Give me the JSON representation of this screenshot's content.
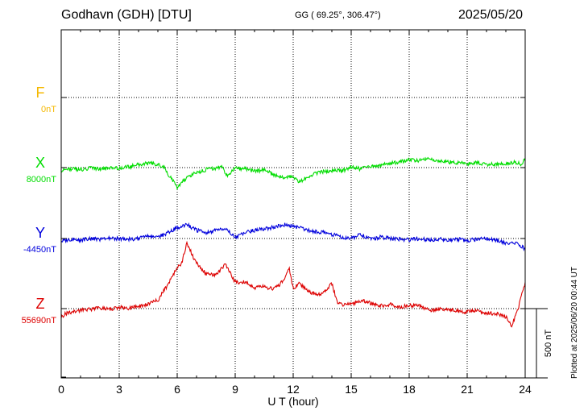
{
  "header": {
    "station": "Godhavn (GDH)  [DTU]",
    "coords": "GG ( 69.25°, 306.47°)",
    "date": "2025/05/20"
  },
  "footer": {
    "plotted": "Plotted at 2025/06/20 00:44 UT"
  },
  "chart_data": {
    "type": "line",
    "title": "Godhavn (GDH)  [DTU]",
    "xlabel": "U T (hour)",
    "xlim": [
      0,
      24
    ],
    "xticks": [
      "0",
      "3",
      "6",
      "9",
      "12",
      "15",
      "18",
      "21",
      "24"
    ],
    "grid": true,
    "scale_bar": {
      "label": "500 nT",
      "value_nT": 500
    },
    "colors": {
      "F": "#f5b800",
      "X": "#00dd00",
      "Y": "#0000dd",
      "Z": "#dd0000"
    },
    "series": [
      {
        "name": "F",
        "base_label": "0nT",
        "x": [],
        "y": []
      },
      {
        "name": "X",
        "base_label": "8000nT",
        "x": [
          0,
          0.5,
          1,
          1.5,
          2,
          2.5,
          3,
          3.5,
          4,
          4.5,
          5,
          5.3,
          5.6,
          5.9,
          6.0,
          6.3,
          6.6,
          7,
          7.5,
          8,
          8.3,
          8.6,
          9,
          9.5,
          10,
          10.5,
          11,
          11.5,
          11.8,
          12,
          12.3,
          12.6,
          13,
          13.5,
          14,
          14.5,
          15,
          15.5,
          16,
          16.5,
          17,
          17.5,
          18,
          18.5,
          19,
          19.5,
          20,
          20.5,
          21,
          21.5,
          22,
          22.5,
          23,
          23.5,
          23.8,
          24
        ],
        "y": [
          -20,
          -10,
          -15,
          -5,
          -10,
          -5,
          -5,
          5,
          20,
          30,
          25,
          5,
          -60,
          -120,
          -150,
          -100,
          -60,
          -35,
          -15,
          -5,
          10,
          -60,
          -5,
          -10,
          -25,
          -20,
          -50,
          -70,
          -60,
          -75,
          -100,
          -80,
          -50,
          -30,
          -20,
          -25,
          5,
          -10,
          10,
          15,
          30,
          40,
          60,
          50,
          60,
          45,
          40,
          35,
          30,
          35,
          25,
          20,
          30,
          40,
          20,
          70
        ]
      },
      {
        "name": "Y",
        "base_label": "-4450nT",
        "x": [
          0,
          0.5,
          1,
          1.5,
          2,
          2.5,
          3,
          3.5,
          4,
          4.5,
          5,
          5.5,
          6,
          6.5,
          7,
          7.5,
          8,
          8.5,
          9,
          9.5,
          10,
          10.5,
          11,
          11.5,
          12,
          12.5,
          13,
          13.5,
          14,
          14.5,
          15,
          15.5,
          16,
          16.5,
          17,
          17.5,
          18,
          18.5,
          19,
          19.5,
          20,
          20.5,
          21,
          21.5,
          22,
          22.5,
          23,
          23.5,
          24
        ],
        "y": [
          -20,
          -5,
          -10,
          0,
          -5,
          0,
          0,
          -5,
          0,
          15,
          10,
          40,
          80,
          100,
          60,
          40,
          60,
          70,
          10,
          40,
          60,
          70,
          80,
          100,
          90,
          70,
          50,
          45,
          30,
          10,
          0,
          30,
          -5,
          10,
          0,
          -5,
          -10,
          0,
          -10,
          -5,
          -10,
          -5,
          -15,
          -5,
          0,
          -10,
          -35,
          -30,
          -75
        ]
      },
      {
        "name": "Z",
        "base_label": "55690nT",
        "x": [
          0,
          0.3,
          0.6,
          1,
          1.5,
          2,
          2.5,
          3,
          3.5,
          4,
          4.5,
          5,
          5.5,
          6,
          6.2,
          6.5,
          6.8,
          7,
          7.5,
          8,
          8.5,
          9,
          9.5,
          10,
          10.5,
          11,
          11.5,
          11.8,
          12,
          12.3,
          12.6,
          13,
          13.5,
          14,
          14.3,
          14.6,
          15,
          15.5,
          16,
          16.5,
          17,
          17.5,
          18,
          18.5,
          19,
          19.5,
          20,
          20.5,
          21,
          21.5,
          22,
          22.5,
          23,
          23.3,
          23.6,
          24
        ],
        "y": [
          -60,
          -30,
          -25,
          -10,
          -5,
          5,
          -5,
          10,
          0,
          15,
          30,
          60,
          170,
          300,
          310,
          480,
          380,
          330,
          250,
          240,
          320,
          190,
          190,
          150,
          160,
          140,
          200,
          290,
          140,
          180,
          150,
          110,
          100,
          180,
          40,
          30,
          30,
          60,
          40,
          20,
          30,
          10,
          25,
          20,
          -10,
          -5,
          0,
          -20,
          -25,
          -15,
          -30,
          -35,
          -60,
          -120,
          -20,
          190
        ]
      }
    ]
  }
}
